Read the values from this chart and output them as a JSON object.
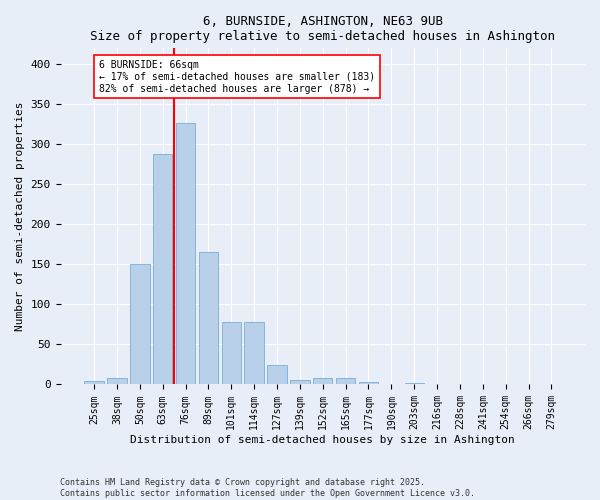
{
  "title1": "6, BURNSIDE, ASHINGTON, NE63 9UB",
  "title2": "Size of property relative to semi-detached houses in Ashington",
  "xlabel": "Distribution of semi-detached houses by size in Ashington",
  "ylabel": "Number of semi-detached properties",
  "categories": [
    "25sqm",
    "38sqm",
    "50sqm",
    "63sqm",
    "76sqm",
    "89sqm",
    "101sqm",
    "114sqm",
    "127sqm",
    "139sqm",
    "152sqm",
    "165sqm",
    "177sqm",
    "190sqm",
    "203sqm",
    "216sqm",
    "228sqm",
    "241sqm",
    "254sqm",
    "266sqm",
    "279sqm"
  ],
  "values": [
    4,
    8,
    150,
    288,
    327,
    165,
    78,
    78,
    24,
    6,
    8,
    8,
    3,
    0,
    2,
    0,
    1,
    0,
    0,
    0,
    1
  ],
  "bar_color": "#b8d0ea",
  "bar_edge_color": "#7aafd4",
  "vline_x_index": 3.5,
  "vline_color": "red",
  "annotation_title": "6 BURNSIDE: 66sqm",
  "annotation_line2": "← 17% of semi-detached houses are smaller (183)",
  "annotation_line3": "82% of semi-detached houses are larger (878) →",
  "annotation_box_color": "white",
  "annotation_box_edge": "red",
  "ylim": [
    0,
    420
  ],
  "yticks": [
    0,
    50,
    100,
    150,
    200,
    250,
    300,
    350,
    400
  ],
  "footer1": "Contains HM Land Registry data © Crown copyright and database right 2025.",
  "footer2": "Contains public sector information licensed under the Open Government Licence v3.0.",
  "bg_color": "#e8eef8",
  "plot_bg_color": "#e8eef8",
  "title_fontsize": 9,
  "axis_label_fontsize": 8,
  "tick_fontsize": 7,
  "footer_fontsize": 6
}
